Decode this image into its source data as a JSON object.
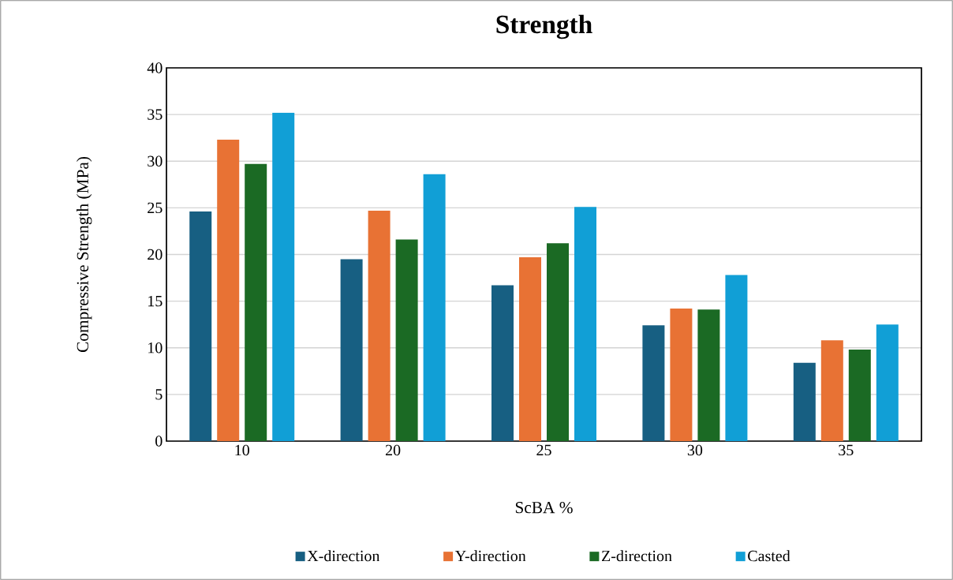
{
  "chart_data": {
    "type": "bar",
    "title": "Strength",
    "xlabel": "ScBA %",
    "ylabel": "Compressive Strength (MPa)",
    "categories": [
      "10",
      "20",
      "25",
      "30",
      "35"
    ],
    "series": [
      {
        "name": "X-direction",
        "color": "#175f82",
        "values": [
          24.6,
          19.5,
          16.7,
          12.4,
          8.4
        ]
      },
      {
        "name": "Y-direction",
        "color": "#e87234",
        "values": [
          32.3,
          24.7,
          19.7,
          14.2,
          10.8
        ]
      },
      {
        "name": "Z-direction",
        "color": "#1b6a24",
        "values": [
          29.7,
          21.6,
          21.2,
          14.1,
          9.8
        ]
      },
      {
        "name": "Casted",
        "color": "#119fd6",
        "values": [
          35.2,
          28.6,
          25.1,
          17.8,
          12.5
        ]
      }
    ],
    "ylim": [
      0,
      40
    ],
    "yticks": [
      0,
      5,
      10,
      15,
      20,
      25,
      30,
      35,
      40
    ],
    "grid": "y",
    "legend": "bottom"
  }
}
